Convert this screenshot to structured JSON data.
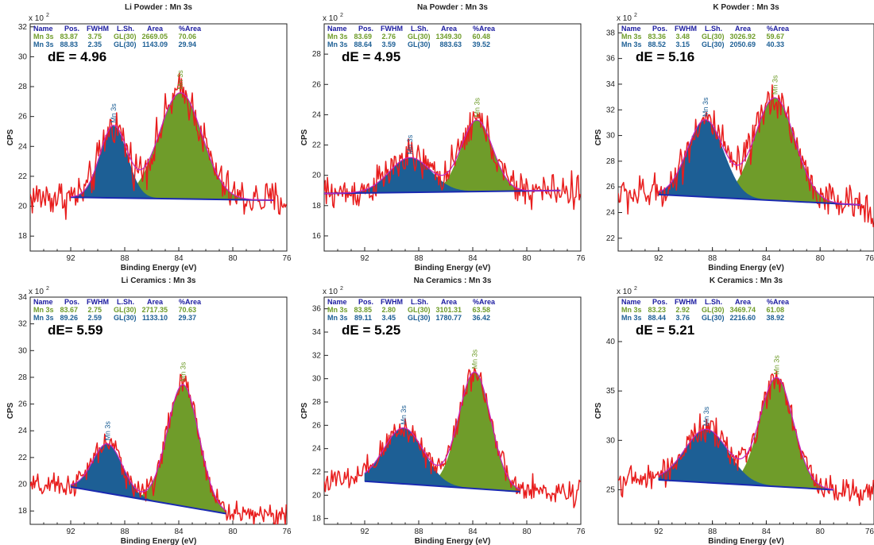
{
  "colors": {
    "raw": "#e81d1d",
    "peak1": "#6f9c2a",
    "peak2": "#1d5f95",
    "envelope": "#c224c2",
    "background": "#1a2ab0",
    "header": "#1a1aa0"
  },
  "table_header": [
    "Name",
    "Pos.",
    "FWHM",
    "L.Sh.",
    "Area",
    "%Area"
  ],
  "chart_data": [
    {
      "type": "line",
      "title": "Li Powder : Mn 3s",
      "xlabel": "Binding Energy (eV)",
      "ylabel": "CPS",
      "y_scale": "x 10^2",
      "xlim": [
        95,
        76
      ],
      "ylim": [
        17,
        32.2
      ],
      "x_ticks": [
        92,
        88,
        84,
        80,
        76
      ],
      "y_ticks": [
        18,
        20,
        22,
        24,
        26,
        28,
        30,
        32
      ],
      "dE": "dE = 4.96",
      "background": {
        "x": [
          92,
          77
        ],
        "y": [
          20.6,
          20.4
        ]
      },
      "raw_noise": 0.85,
      "peaks": [
        {
          "name": "Mn 3s",
          "pos": "83.87",
          "fwhm": "3.75",
          "lsh": "GL(30)",
          "area": "2669.05",
          "pct_area": "70.06",
          "center": 83.87,
          "height": 7.1,
          "color": "#6f9c2a"
        },
        {
          "name": "Mn 3s",
          "pos": "88.83",
          "fwhm": "2.35",
          "lsh": "GL(30)",
          "area": "1143.09",
          "pct_area": "29.94",
          "center": 88.83,
          "height": 4.8,
          "color": "#1d5f95"
        }
      ]
    },
    {
      "type": "line",
      "title": "Na Powder : Mn 3s",
      "xlabel": "Binding Energy (eV)",
      "ylabel": "CPS",
      "y_scale": "x 10^2",
      "xlim": [
        95,
        76
      ],
      "ylim": [
        15,
        30
      ],
      "x_ticks": [
        92,
        88,
        84,
        80,
        76
      ],
      "y_ticks": [
        16,
        18,
        20,
        22,
        24,
        26,
        28
      ],
      "dE": "dE = 4.95",
      "background": {
        "x": [
          95,
          77.5
        ],
        "y": [
          18.8,
          19.0
        ]
      },
      "raw_noise": 0.75,
      "peaks": [
        {
          "name": "Mn 3s",
          "pos": "83.69",
          "fwhm": "2.76",
          "lsh": "GL(30)",
          "area": "1349.30",
          "pct_area": "60.48",
          "center": 83.69,
          "height": 4.7,
          "color": "#6f9c2a"
        },
        {
          "name": "Mn 3s",
          "pos": "88.64",
          "fwhm": "3.59",
          "lsh": "GL(30)",
          "area": "883.63",
          "pct_area": "39.52",
          "center": 88.64,
          "height": 2.3,
          "color": "#1d5f95"
        }
      ]
    },
    {
      "type": "line",
      "title": "K Powder : Mn 3s",
      "xlabel": "Binding Energy (eV)",
      "ylabel": "CPS",
      "y_scale": "x 10^2",
      "xlim": [
        95,
        76
      ],
      "ylim": [
        21,
        38.7
      ],
      "x_ticks": [
        92,
        88,
        84,
        80,
        76
      ],
      "y_ticks": [
        22,
        24,
        26,
        28,
        30,
        32,
        34,
        36,
        38
      ],
      "dE": "dE = 5.16",
      "background": {
        "x": [
          92,
          77
        ],
        "y": [
          25.4,
          24.6
        ]
      },
      "raw_noise": 0.95,
      "peaks": [
        {
          "name": "Mn 3s",
          "pos": "83.36",
          "fwhm": "3.48",
          "lsh": "GL(30)",
          "area": "3026.92",
          "pct_area": "59.67",
          "center": 83.36,
          "height": 8.0,
          "color": "#6f9c2a"
        },
        {
          "name": "Mn 3s",
          "pos": "88.52",
          "fwhm": "3.15",
          "lsh": "GL(30)",
          "area": "2050.69",
          "pct_area": "40.33",
          "center": 88.52,
          "height": 6.0,
          "color": "#1d5f95"
        }
      ]
    },
    {
      "type": "line",
      "title": "Li Ceramics : Mn 3s",
      "xlabel": "Binding Energy (eV)",
      "ylabel": "CPS",
      "y_scale": "x 10^2",
      "xlim": [
        95,
        76
      ],
      "ylim": [
        17,
        34
      ],
      "x_ticks": [
        92,
        88,
        84,
        80,
        76
      ],
      "y_ticks": [
        18,
        20,
        22,
        24,
        26,
        28,
        30,
        32,
        34
      ],
      "dE": "dE= 5.59",
      "background": {
        "x": [
          92,
          80.5
        ],
        "y": [
          19.8,
          17.8
        ]
      },
      "raw_noise": 0.6,
      "peaks": [
        {
          "name": "Mn 3s",
          "pos": "83.67",
          "fwhm": "2.75",
          "lsh": "GL(30)",
          "area": "2717.35",
          "pct_area": "70.63",
          "center": 83.67,
          "height": 9.1,
          "color": "#6f9c2a"
        },
        {
          "name": "Mn 3s",
          "pos": "89.26",
          "fwhm": "2.59",
          "lsh": "GL(30)",
          "area": "1133.10",
          "pct_area": "29.37",
          "center": 89.26,
          "height": 3.7,
          "color": "#1d5f95"
        }
      ]
    },
    {
      "type": "line",
      "title": "Na Ceramics : Mn 3s",
      "xlabel": "Binding Energy (eV)",
      "ylabel": "CPS",
      "y_scale": "x 10^2",
      "xlim": [
        95,
        76
      ],
      "ylim": [
        17.5,
        37
      ],
      "x_ticks": [
        92,
        88,
        84,
        80,
        76
      ],
      "y_ticks": [
        18,
        20,
        22,
        24,
        26,
        28,
        30,
        32,
        34,
        36
      ],
      "dE": "dE = 5.25",
      "background": {
        "x": [
          92,
          80.5
        ],
        "y": [
          21.2,
          20.3
        ]
      },
      "raw_noise": 0.75,
      "peaks": [
        {
          "name": "Mn 3s",
          "pos": "83.85",
          "fwhm": "2.80",
          "lsh": "GL(30)",
          "area": "3101.31",
          "pct_area": "63.58",
          "center": 83.85,
          "height": 10.0,
          "color": "#6f9c2a"
        },
        {
          "name": "Mn 3s",
          "pos": "89.11",
          "fwhm": "3.45",
          "lsh": "GL(30)",
          "area": "1780.77",
          "pct_area": "36.42",
          "center": 89.11,
          "height": 4.8,
          "color": "#1d5f95"
        }
      ]
    },
    {
      "type": "line",
      "title": "K Ceramics : Mn 3s",
      "xlabel": "Binding Energy (eV)",
      "ylabel": "CPS",
      "y_scale": "x 10^2",
      "xlim": [
        95,
        76
      ],
      "ylim": [
        21.5,
        44.5
      ],
      "x_ticks": [
        92,
        88,
        84,
        80,
        76
      ],
      "y_ticks": [
        25,
        30,
        35,
        40
      ],
      "dE": "dE = 5.21",
      "background": {
        "x": [
          92,
          79
        ],
        "y": [
          26.0,
          25.0
        ]
      },
      "raw_noise": 0.9,
      "peaks": [
        {
          "name": "Mn 3s",
          "pos": "83.23",
          "fwhm": "2.92",
          "lsh": "GL(30)",
          "area": "3469.74",
          "pct_area": "61.08",
          "center": 83.23,
          "height": 11.0,
          "color": "#6f9c2a"
        },
        {
          "name": "Mn 3s",
          "pos": "88.44",
          "fwhm": "3.76",
          "lsh": "GL(30)",
          "area": "2216.60",
          "pct_area": "38.92",
          "center": 88.44,
          "height": 5.4,
          "color": "#1d5f95"
        }
      ]
    }
  ]
}
